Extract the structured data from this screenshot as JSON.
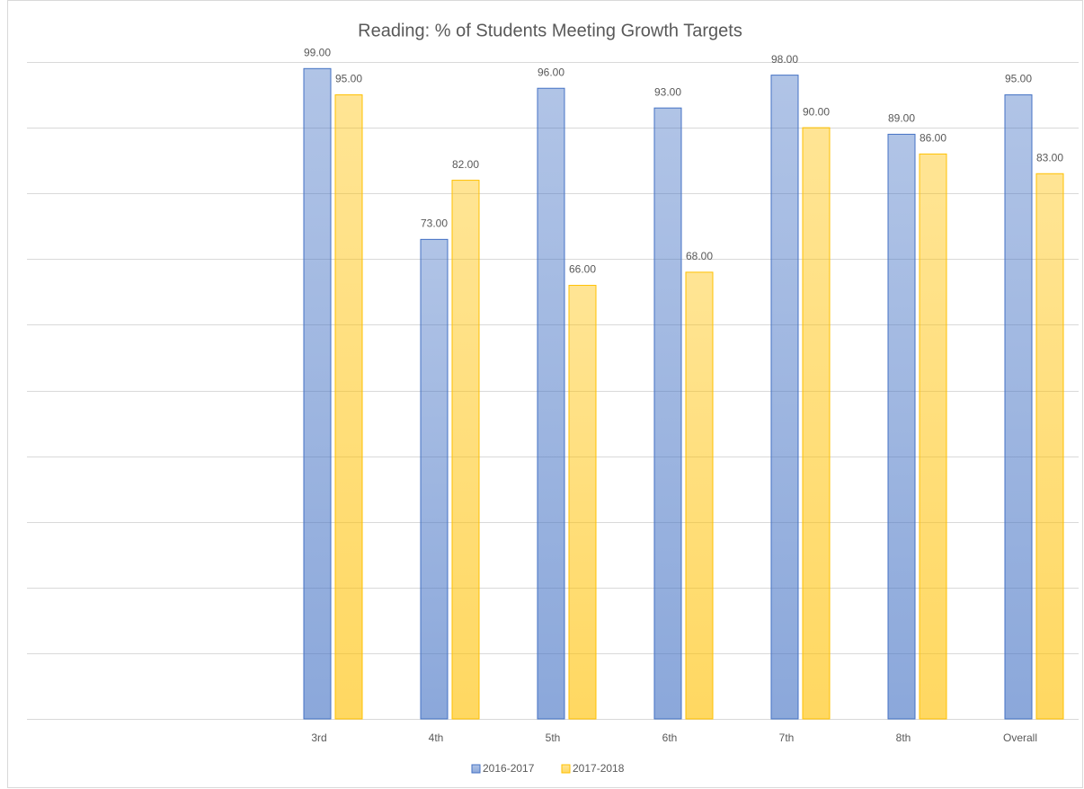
{
  "chart_data": {
    "type": "bar",
    "title": "Reading: % of Students Meeting Growth Targets",
    "categories": [
      null,
      null,
      "3rd",
      "4th",
      "5th",
      "6th",
      "7th",
      "8th",
      "Overall"
    ],
    "series": [
      {
        "name": "2016-2017",
        "color": "#4472c4",
        "values": [
          null,
          null,
          99,
          73,
          96,
          93,
          98,
          89,
          95
        ],
        "value_labels": [
          null,
          null,
          "99.00",
          "73.00",
          "96.00",
          "93.00",
          "98.00",
          "89.00",
          "95.00"
        ]
      },
      {
        "name": "2017-2018",
        "color": "#ffc000",
        "values": [
          null,
          null,
          95,
          82,
          66,
          68,
          90,
          86,
          83
        ],
        "value_labels": [
          null,
          null,
          "95.00",
          "82.00",
          "66.00",
          "68.00",
          "90.00",
          "86.00",
          "83.00"
        ]
      }
    ],
    "ylim": [
      0,
      100
    ],
    "yticks": [
      0,
      10,
      20,
      30,
      40,
      50,
      60,
      70,
      80,
      90,
      100
    ],
    "grid": true,
    "legend": "bottom"
  }
}
